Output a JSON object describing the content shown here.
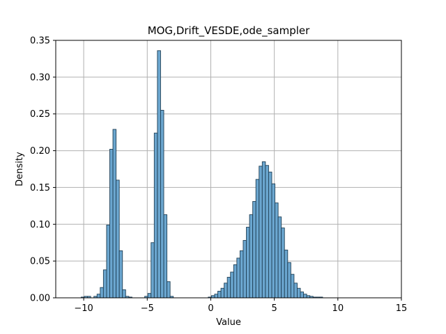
{
  "chart_data": {
    "type": "bar",
    "title": "MOG,Drift_VESDE,ode_sampler",
    "xlabel": "Value",
    "ylabel": "Density",
    "xlim": [
      -12.2,
      15.0
    ],
    "ylim": [
      0,
      0.35
    ],
    "grid": true,
    "x_ticks": [
      -10,
      -5,
      0,
      5,
      10,
      15
    ],
    "y_ticks": [
      0.0,
      0.05,
      0.1,
      0.15,
      0.2,
      0.25,
      0.3,
      0.35
    ],
    "x_tick_labels": [
      "−10",
      "−5",
      "0",
      "5",
      "10",
      "15"
    ],
    "y_tick_labels": [
      "0.00",
      "0.05",
      "0.10",
      "0.15",
      "0.20",
      "0.25",
      "0.30",
      "0.35"
    ],
    "bar_color": "#6ba6cf",
    "bar_edge_color": "#1f3f55",
    "grid_color": "#b0b0b0",
    "bin_width": 0.25,
    "bins": [
      {
        "x0": -10.2,
        "v": 0.001
      },
      {
        "x0": -9.95,
        "v": 0.002
      },
      {
        "x0": -9.7,
        "v": 0.002
      },
      {
        "x0": -9.2,
        "v": 0.002
      },
      {
        "x0": -8.95,
        "v": 0.005
      },
      {
        "x0": -8.7,
        "v": 0.014
      },
      {
        "x0": -8.45,
        "v": 0.038
      },
      {
        "x0": -8.2,
        "v": 0.099
      },
      {
        "x0": -7.95,
        "v": 0.202
      },
      {
        "x0": -7.7,
        "v": 0.229
      },
      {
        "x0": -7.45,
        "v": 0.16
      },
      {
        "x0": -7.2,
        "v": 0.064
      },
      {
        "x0": -6.95,
        "v": 0.011
      },
      {
        "x0": -6.7,
        "v": 0.002
      },
      {
        "x0": -6.45,
        "v": 0.001
      },
      {
        "x0": -5.2,
        "v": 0.002
      },
      {
        "x0": -4.95,
        "v": 0.006
      },
      {
        "x0": -4.7,
        "v": 0.075
      },
      {
        "x0": -4.45,
        "v": 0.224
      },
      {
        "x0": -4.2,
        "v": 0.336
      },
      {
        "x0": -3.95,
        "v": 0.255
      },
      {
        "x0": -3.7,
        "v": 0.113
      },
      {
        "x0": -3.45,
        "v": 0.022
      },
      {
        "x0": -3.2,
        "v": 0.002
      },
      {
        "x0": -0.2,
        "v": 0.001
      },
      {
        "x0": 0.05,
        "v": 0.003
      },
      {
        "x0": 0.3,
        "v": 0.005
      },
      {
        "x0": 0.55,
        "v": 0.009
      },
      {
        "x0": 0.8,
        "v": 0.013
      },
      {
        "x0": 1.05,
        "v": 0.02
      },
      {
        "x0": 1.3,
        "v": 0.028
      },
      {
        "x0": 1.55,
        "v": 0.035
      },
      {
        "x0": 1.8,
        "v": 0.045
      },
      {
        "x0": 2.05,
        "v": 0.054
      },
      {
        "x0": 2.3,
        "v": 0.064
      },
      {
        "x0": 2.55,
        "v": 0.078
      },
      {
        "x0": 2.8,
        "v": 0.096
      },
      {
        "x0": 3.05,
        "v": 0.113
      },
      {
        "x0": 3.3,
        "v": 0.131
      },
      {
        "x0": 3.55,
        "v": 0.161
      },
      {
        "x0": 3.8,
        "v": 0.179
      },
      {
        "x0": 4.05,
        "v": 0.185
      },
      {
        "x0": 4.3,
        "v": 0.18
      },
      {
        "x0": 4.55,
        "v": 0.171
      },
      {
        "x0": 4.8,
        "v": 0.155
      },
      {
        "x0": 5.05,
        "v": 0.129
      },
      {
        "x0": 5.3,
        "v": 0.11
      },
      {
        "x0": 5.55,
        "v": 0.095
      },
      {
        "x0": 5.8,
        "v": 0.065
      },
      {
        "x0": 6.05,
        "v": 0.048
      },
      {
        "x0": 6.3,
        "v": 0.032
      },
      {
        "x0": 6.55,
        "v": 0.02
      },
      {
        "x0": 6.8,
        "v": 0.013
      },
      {
        "x0": 7.05,
        "v": 0.008
      },
      {
        "x0": 7.3,
        "v": 0.005
      },
      {
        "x0": 7.55,
        "v": 0.003
      },
      {
        "x0": 7.8,
        "v": 0.002
      },
      {
        "x0": 8.05,
        "v": 0.001
      },
      {
        "x0": 8.3,
        "v": 0.001
      },
      {
        "x0": 8.55,
        "v": 0.001
      }
    ]
  }
}
